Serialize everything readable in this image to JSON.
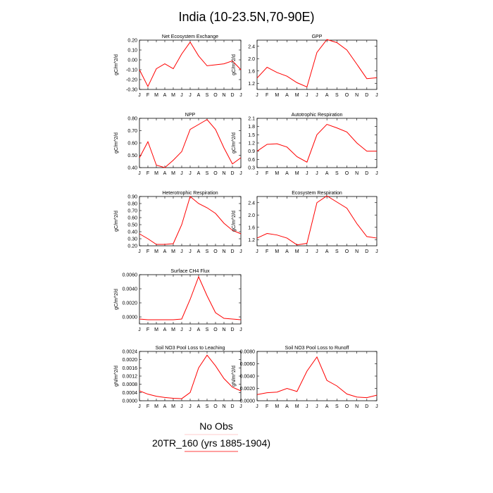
{
  "page_title": "India (10-23.5N,70-90E)",
  "legend": [
    {
      "label": "No Obs",
      "color": ""
    },
    {
      "label": "20TR_160 (yrs 1885-1904)",
      "color": "#ff0000"
    }
  ],
  "colors": {
    "series": "#ff0000",
    "frame": "#000000"
  },
  "chart_data": [
    {
      "type": "line",
      "title": "Net Ecosystem Exchange",
      "ylabel": "gC/m^2/d",
      "categories": [
        "J",
        "F",
        "M",
        "A",
        "M",
        "J",
        "J",
        "A",
        "S",
        "O",
        "N",
        "D",
        "J"
      ],
      "ylim": [
        -0.3,
        0.2
      ],
      "yticks": [
        "0.20",
        "0.10",
        "0.00",
        "-0.10",
        "-0.20",
        "-0.30"
      ],
      "ytick_values": [
        0.2,
        0.1,
        0.0,
        -0.1,
        -0.2,
        -0.3
      ],
      "values": [
        -0.1,
        -0.27,
        -0.09,
        -0.04,
        -0.09,
        0.06,
        0.18,
        0.04,
        -0.06,
        -0.05,
        -0.04,
        -0.01,
        -0.1
      ]
    },
    {
      "type": "line",
      "title": "GPP",
      "ylabel": "gC/m^2/d",
      "categories": [
        "J",
        "F",
        "M",
        "A",
        "M",
        "J",
        "J",
        "A",
        "S",
        "O",
        "N",
        "D",
        "J"
      ],
      "ylim": [
        1.0,
        2.6
      ],
      "yticks": [
        "2.4",
        "2.0",
        "1.6",
        "1.2"
      ],
      "ytick_values": [
        2.4,
        2.0,
        1.6,
        1.2
      ],
      "values": [
        1.37,
        1.72,
        1.55,
        1.43,
        1.22,
        1.08,
        2.2,
        2.62,
        2.52,
        2.28,
        1.82,
        1.35,
        1.38
      ]
    },
    {
      "type": "line",
      "title": "NPP",
      "ylabel": "gC/m^2/d",
      "categories": [
        "J",
        "F",
        "M",
        "A",
        "M",
        "J",
        "J",
        "A",
        "S",
        "O",
        "N",
        "D",
        "J"
      ],
      "ylim": [
        0.4,
        0.8
      ],
      "yticks": [
        "0.80",
        "0.70",
        "0.60",
        "0.50",
        "0.40"
      ],
      "ytick_values": [
        0.8,
        0.7,
        0.6,
        0.5,
        0.4
      ],
      "values": [
        0.48,
        0.61,
        0.42,
        0.4,
        0.46,
        0.53,
        0.71,
        0.75,
        0.79,
        0.71,
        0.56,
        0.43,
        0.48
      ]
    },
    {
      "type": "line",
      "title": "Autotrophic Respiration",
      "ylabel": "gC/m^2/d",
      "categories": [
        "J",
        "F",
        "M",
        "A",
        "M",
        "J",
        "J",
        "A",
        "S",
        "O",
        "N",
        "D",
        "J"
      ],
      "ylim": [
        0.3,
        2.1
      ],
      "yticks": [
        "2.1",
        "1.8",
        "1.5",
        "1.2",
        "0.9",
        "0.6",
        "0.3"
      ],
      "ytick_values": [
        2.1,
        1.8,
        1.5,
        1.2,
        0.9,
        0.6,
        0.3
      ],
      "values": [
        0.9,
        1.15,
        1.17,
        1.05,
        0.7,
        0.5,
        1.5,
        1.88,
        1.75,
        1.6,
        1.2,
        0.9,
        0.9
      ]
    },
    {
      "type": "line",
      "title": "Heterotrophic Respiration",
      "ylabel": "gC/m^2/d",
      "categories": [
        "J",
        "F",
        "M",
        "A",
        "M",
        "J",
        "J",
        "A",
        "S",
        "O",
        "N",
        "D",
        "J"
      ],
      "ylim": [
        0.2,
        0.9
      ],
      "yticks": [
        "0.90",
        "0.80",
        "0.70",
        "0.60",
        "0.50",
        "0.40",
        "0.30",
        "0.20"
      ],
      "ytick_values": [
        0.9,
        0.8,
        0.7,
        0.6,
        0.5,
        0.4,
        0.3,
        0.2
      ],
      "values": [
        0.37,
        0.3,
        0.22,
        0.22,
        0.23,
        0.5,
        0.9,
        0.8,
        0.74,
        0.66,
        0.52,
        0.42,
        0.37
      ]
    },
    {
      "type": "line",
      "title": "Ecosystem Respiration",
      "ylabel": "gC/m^2/d",
      "categories": [
        "J",
        "F",
        "M",
        "A",
        "M",
        "J",
        "J",
        "A",
        "S",
        "O",
        "N",
        "D",
        "J"
      ],
      "ylim": [
        1.0,
        2.6
      ],
      "yticks": [
        "2.4",
        "2.0",
        "1.6",
        "1.2"
      ],
      "ytick_values": [
        2.4,
        2.0,
        1.6,
        1.2
      ],
      "values": [
        1.25,
        1.4,
        1.35,
        1.25,
        1.03,
        1.08,
        2.4,
        2.62,
        2.42,
        2.22,
        1.72,
        1.3,
        1.25
      ]
    },
    {
      "type": "line",
      "title": "Surface CH4 Flux",
      "ylabel": "gC/m^2/d",
      "categories": [
        "J",
        "F",
        "M",
        "A",
        "M",
        "J",
        "J",
        "A",
        "S",
        "O",
        "N",
        "D",
        "J"
      ],
      "ylim": [
        -0.001,
        0.006
      ],
      "yticks": [
        "0.0060",
        "0.0040",
        "0.0020",
        "0.0000"
      ],
      "ytick_values": [
        0.006,
        0.004,
        0.002,
        0.0
      ],
      "values": [
        -0.0003,
        -0.0004,
        -0.0004,
        -0.0004,
        -0.0004,
        -0.0003,
        0.0025,
        0.0057,
        0.003,
        0.0006,
        -0.0002,
        -0.0003,
        -0.0004
      ]
    },
    {
      "type": "line",
      "title": "Soil NO3 Pool Loss to Leaching",
      "ylabel": "gN/m^2/d",
      "categories": [
        "J",
        "F",
        "M",
        "A",
        "M",
        "J",
        "J",
        "A",
        "S",
        "O",
        "N",
        "D",
        "J"
      ],
      "ylim": [
        0.0,
        0.0024
      ],
      "yticks": [
        "0.0024",
        "0.0020",
        "0.0016",
        "0.0012",
        "0.0008",
        "0.0004",
        "0.0000"
      ],
      "ytick_values": [
        0.0024,
        0.002,
        0.0016,
        0.0012,
        0.0008,
        0.0004,
        0.0
      ],
      "values": [
        0.00048,
        0.00032,
        0.00022,
        0.00016,
        0.00012,
        0.0001,
        0.0004,
        0.0016,
        0.00222,
        0.0017,
        0.00108,
        0.00066,
        0.00048
      ]
    },
    {
      "type": "line",
      "title": "Soil NO3 Pool Loss to Runoff",
      "ylabel": "gN/m^2/d",
      "categories": [
        "J",
        "F",
        "M",
        "A",
        "M",
        "J",
        "J",
        "A",
        "S",
        "O",
        "N",
        "D",
        "J"
      ],
      "ylim": [
        0.0,
        0.008
      ],
      "yticks": [
        "0.0080",
        "0.0060",
        "0.0040",
        "0.0020",
        "0.0000"
      ],
      "ytick_values": [
        0.008,
        0.006,
        0.004,
        0.002,
        0.0
      ],
      "values": [
        0.001,
        0.0013,
        0.0014,
        0.002,
        0.0015,
        0.0048,
        0.0071,
        0.0033,
        0.0024,
        0.0011,
        0.0006,
        0.0005,
        0.0009
      ]
    }
  ]
}
